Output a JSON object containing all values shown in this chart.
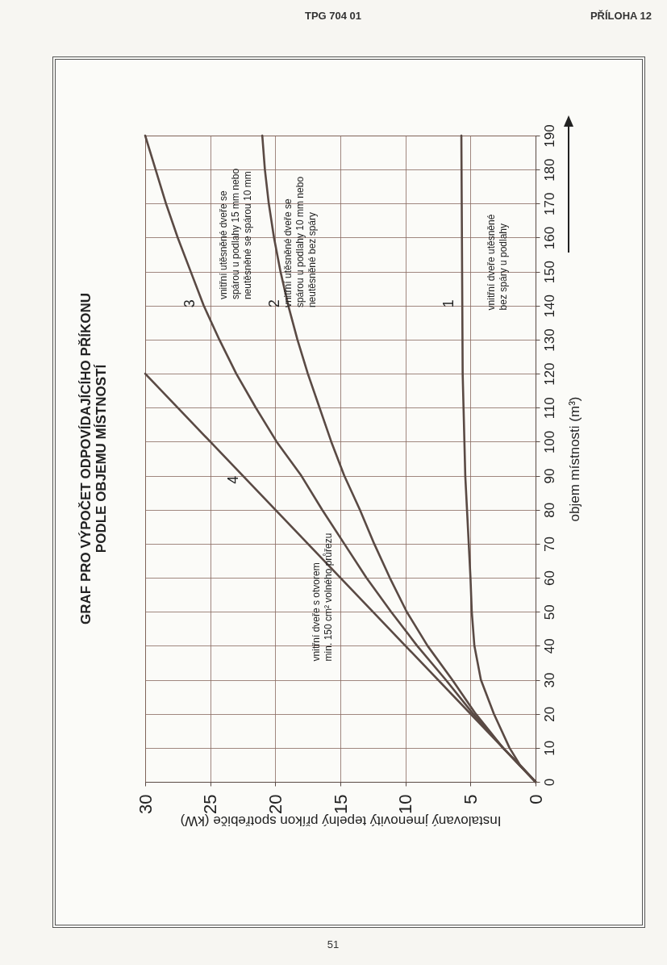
{
  "chart_data": {
    "type": "line",
    "title": "GRAF PRO VÝPOČET ODPOVÍDAJÍCÍHO PŘÍKONU\nPODLE OBJEMU MÍSTNOSTÍ",
    "xlabel": "Instalovaný jmenovitý tepelný příkon spotřebiče (kW)",
    "ylabel": "objem místnosti (m³)",
    "xlim": [
      30,
      0
    ],
    "xticks": [
      30,
      25,
      20,
      15,
      10,
      5,
      0
    ],
    "ylim": [
      0,
      190
    ],
    "yticks": [
      0,
      10,
      20,
      30,
      40,
      50,
      60,
      70,
      80,
      90,
      100,
      110,
      120,
      130,
      140,
      150,
      160,
      170,
      180,
      190
    ],
    "grid": true,
    "legend": false,
    "marker": "none",
    "line_style": "solid",
    "series": [
      {
        "name": "1",
        "color": "#5a4a44",
        "x": [
          0,
          1.2,
          2.0,
          3.2,
          4.2,
          4.7,
          4.9,
          5.0,
          5.4,
          5.6,
          5.7
        ],
        "values": [
          0,
          5,
          10,
          20,
          30,
          40,
          50,
          60,
          90,
          120,
          190
        ]
      },
      {
        "name": "2",
        "color": "#5a4a44",
        "x": [
          0,
          2.5,
          4.6,
          6.4,
          8.3,
          9.9,
          11.2,
          12.4,
          13.5,
          14.7,
          15.7,
          16.6,
          17.5,
          18.3,
          19.0,
          19.6,
          20.1,
          20.5,
          20.8,
          21.0
        ],
        "values": [
          0,
          10,
          20,
          30,
          40,
          50,
          60,
          70,
          80,
          90,
          100,
          110,
          120,
          130,
          140,
          150,
          160,
          170,
          180,
          190
        ]
      },
      {
        "name": "3",
        "color": "#5a4a44",
        "x": [
          0,
          2.5,
          4.8,
          6.9,
          9.1,
          11.1,
          13.0,
          14.7,
          16.4,
          18.0,
          19.9,
          21.5,
          23.0,
          24.3,
          25.5,
          26.5,
          27.5,
          28.4,
          29.2,
          30
        ],
        "values": [
          0,
          10,
          20,
          30,
          40,
          50,
          60,
          70,
          80,
          90,
          100,
          110,
          120,
          130,
          140,
          150,
          160,
          170,
          180,
          190
        ]
      },
      {
        "name": "4",
        "color": "#5a4a44",
        "x": [
          0,
          30
        ],
        "values": [
          0,
          120
        ]
      }
    ],
    "annotations": [
      "vnitřní dveře utěsněné\nbez spáry u podlahy",
      "vnitřní utěsněné dveře se\nspárou u podlahy 10 mm nebo\nneutěsněné bez spáry",
      "vnitřní utěsněné dveře se\nspárou u podlahy 15 mm nebo\nneutěsněné se spárou 10 mm",
      "vnitřní dveře s otvorem\nmin. 150 cm² volného průřezu",
      "TPG 704 01",
      "PŘÍLOHA 12",
      "51"
    ]
  }
}
